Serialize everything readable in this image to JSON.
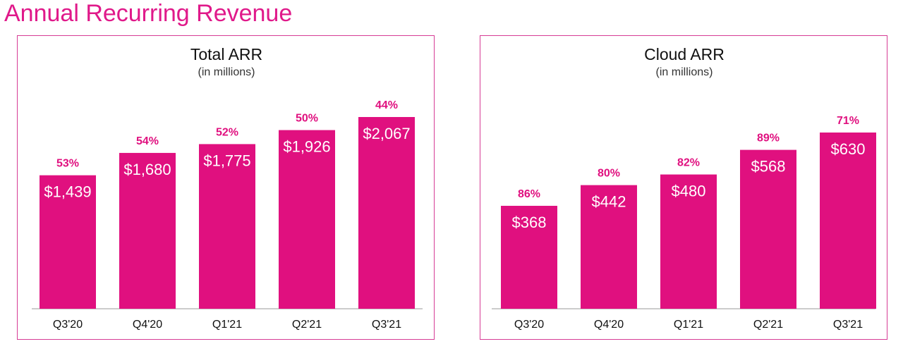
{
  "page": {
    "title": "Annual Recurring Revenue"
  },
  "colors": {
    "accent": "#e0107f",
    "title_text": "#e0198a",
    "border": "#d63c95"
  },
  "chart_data": [
    {
      "type": "bar",
      "title": "Total ARR",
      "subtitle": "(in millions)",
      "categories": [
        "Q3'20",
        "Q4'20",
        "Q1'21",
        "Q2'21",
        "Q3'21"
      ],
      "values": [
        1439,
        1680,
        1775,
        1926,
        2067
      ],
      "value_labels": [
        "$1,439",
        "$1,680",
        "$1,775",
        "$1,926",
        "$2,067"
      ],
      "growth_labels": [
        "53%",
        "54%",
        "52%",
        "50%",
        "44%"
      ],
      "xlabel": "",
      "ylabel": "",
      "grid": false,
      "legend": "none"
    },
    {
      "type": "bar",
      "title": "Cloud ARR",
      "subtitle": "(in millions)",
      "categories": [
        "Q3'20",
        "Q4'20",
        "Q1'21",
        "Q2'21",
        "Q3'21"
      ],
      "values": [
        368,
        442,
        480,
        568,
        630
      ],
      "value_labels": [
        "$368",
        "$442",
        "$480",
        "$568",
        "$630"
      ],
      "growth_labels": [
        "86%",
        "80%",
        "82%",
        "89%",
        "71%"
      ],
      "xlabel": "",
      "ylabel": "",
      "grid": false,
      "legend": "none"
    }
  ]
}
